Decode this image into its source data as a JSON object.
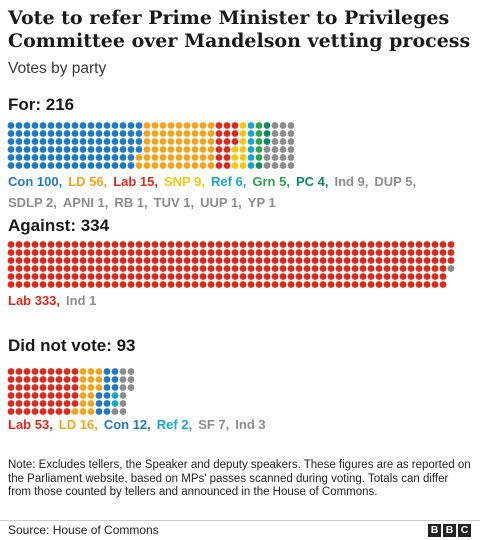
{
  "title": "Vote to refer Prime Minister to Privileges Committee over Mandelson vetting process",
  "subtitle": "Votes by party",
  "colors": {
    "Con": "#1c7ac8",
    "LD": "#f5a31a",
    "Lab": "#e0281c",
    "SNP": "#f2c70d",
    "Ref": "#16a8c7",
    "Grn": "#2ea34a",
    "PC": "#0d8a66",
    "Other": "#8c8c8c"
  },
  "chart_data": {
    "type": "waffle",
    "groups": [
      {
        "key": "for",
        "label": "For: 216",
        "total": 216,
        "parties": [
          {
            "label": "Con 100,",
            "party": "Con",
            "value": 100,
            "color": "#1c7ac8"
          },
          {
            "label": "LD 56,",
            "party": "LD",
            "value": 56,
            "color": "#f5a31a"
          },
          {
            "label": "Lab 15,",
            "party": "Lab",
            "value": 15,
            "color": "#e0281c"
          },
          {
            "label": "SNP 9,",
            "party": "SNP",
            "value": 9,
            "color": "#f2c70d"
          },
          {
            "label": "Ref 6,",
            "party": "Ref",
            "value": 6,
            "color": "#16a8c7"
          },
          {
            "label": "Grn 5,",
            "party": "Grn",
            "value": 5,
            "color": "#2ea34a"
          },
          {
            "label": "PC 4,",
            "party": "PC",
            "value": 4,
            "color": "#0d8a66"
          },
          {
            "label": "Ind 9,",
            "party": "Ind",
            "value": 9,
            "color": "#8c8c8c"
          },
          {
            "label": "DUP 5,",
            "party": "DUP",
            "value": 5,
            "color": "#8c8c8c"
          },
          {
            "label": "SDLP 2,",
            "party": "SDLP",
            "value": 2,
            "color": "#8c8c8c"
          },
          {
            "label": "APNI 1,",
            "party": "APNI",
            "value": 1,
            "color": "#8c8c8c"
          },
          {
            "label": "RB 1,",
            "party": "RB",
            "value": 1,
            "color": "#8c8c8c"
          },
          {
            "label": "TUV 1,",
            "party": "TUV",
            "value": 1,
            "color": "#8c8c8c"
          },
          {
            "label": "UUP 1,",
            "party": "UUP",
            "value": 1,
            "color": "#8c8c8c"
          },
          {
            "label": "YP 1",
            "party": "YP",
            "value": 1,
            "color": "#8c8c8c"
          }
        ]
      },
      {
        "key": "against",
        "label": "Against: 334",
        "total": 334,
        "parties": [
          {
            "label": "Lab 333,",
            "party": "Lab",
            "value": 333,
            "color": "#e0281c"
          },
          {
            "label": "Ind 1",
            "party": "Ind",
            "value": 1,
            "color": "#8c8c8c"
          }
        ]
      },
      {
        "key": "didnotvote",
        "label": "Did not vote: 93",
        "total": 93,
        "parties": [
          {
            "label": "Lab 53,",
            "party": "Lab",
            "value": 53,
            "color": "#e0281c"
          },
          {
            "label": "LD 16,",
            "party": "LD",
            "value": 16,
            "color": "#f5a31a"
          },
          {
            "label": "Con 12,",
            "party": "Con",
            "value": 12,
            "color": "#1c7ac8"
          },
          {
            "label": "Ref 2,",
            "party": "Ref",
            "value": 2,
            "color": "#16a8c7"
          },
          {
            "label": "SF 7,",
            "party": "SF",
            "value": 7,
            "color": "#8c8c8c"
          },
          {
            "label": "Ind 3",
            "party": "Ind",
            "value": 3,
            "color": "#8c8c8c"
          }
        ]
      }
    ]
  },
  "note": "Note: Excludes tellers, the Speaker and deputy speakers. These figures are as reported on the Parliament website, based on MPs' passes scanned during voting. Totals can differ from those counted by tellers and announced in the House of Commons.",
  "source": "Source: House of Commons",
  "logo": [
    "B",
    "B",
    "C"
  ]
}
